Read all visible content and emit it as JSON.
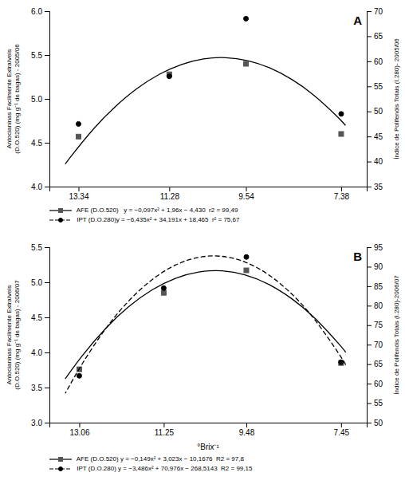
{
  "chart_data": [
    {
      "type": "scatter",
      "annotations": [
        "A"
      ],
      "xlim": [
        14.0,
        6.8
      ],
      "xticks": [
        13.34,
        11.28,
        9.54,
        7.38
      ],
      "ylim": [
        4.0,
        6.0
      ],
      "yticks": [
        {
          "value": 4.0,
          "label": "4.0"
        },
        4.5,
        {
          "value": 5.0,
          "label": "5.0"
        },
        5.5,
        {
          "value": 6.0,
          "label": "6.0"
        }
      ],
      "y_label": "Antocianinas Facilmente Extraíveis\n(D.O.520) (mg g⁻¹ de bagas) - 2005/06",
      "y2lim": [
        35,
        70
      ],
      "y2ticks": [
        35,
        40,
        45,
        50,
        55,
        60,
        65,
        70
      ],
      "y2_label": "Índice de Polifenóis Totais (I.280)- 2005/06",
      "legend": "bottom",
      "series": [
        {
          "name": " AFE (D.O.520)   y = −0,097x² + 1,96x − 4,430  r2 = 99,49",
          "type": "scatter",
          "marker": "square",
          "color": "#555555",
          "line_style": "solid",
          "x": [
            13.34,
            11.28,
            9.54,
            7.38
          ],
          "values": [
            4.57,
            5.28,
            5.4,
            4.6
          ],
          "fit": {
            "color": "#000000",
            "x": [
              7.28,
              7.5,
              8,
              8.5,
              9,
              9.5,
              10,
              10.5,
              11,
              11.5,
              12,
              12.5,
              13,
              13.5,
              13.64
            ],
            "values": [
              4.698,
              4.8138,
              5.042,
              5.2218,
              5.353,
              5.4358,
              5.47,
              5.4558,
              5.393,
              5.2818,
              5.122,
              4.9138,
              4.657,
              4.3518,
              4.2576
            ]
          }
        },
        {
          "name": " IPT (D.O.280)y = −6,435x² + 34,191x + 18,465  r² = 75,67",
          "type": "scatter",
          "marker": "circle",
          "color": "#000000",
          "line_style": "dashed",
          "axis": "y2",
          "x": [
            13.34,
            11.28,
            9.54,
            7.38
          ],
          "values": [
            47.5,
            57.0,
            68.5,
            49.5
          ]
        }
      ]
    },
    {
      "type": "scatter",
      "annotations": [
        "B"
      ],
      "xlim": [
        13.7,
        6.9
      ],
      "xticks": [
        13.06,
        11.25,
        9.48,
        7.45
      ],
      "x_label": "°Brix⁻¹",
      "ylim": [
        3.0,
        5.5
      ],
      "yticks": [
        {
          "value": 3.0,
          "label": "3.0"
        },
        3.5,
        {
          "value": 4.0,
          "label": "4.0"
        },
        4.5,
        {
          "value": 5.0,
          "label": "5.0"
        },
        5.5
      ],
      "y_label": "Antocianinas Facilmente Extraíveis\n(D.O.520) (mg g⁻¹ de bagas) - 2006/07",
      "y2lim": [
        50,
        95
      ],
      "y2ticks": [
        50,
        55,
        60,
        65,
        70,
        75,
        80,
        85,
        90,
        95
      ],
      "y2_label": "Índice de Polifenóis Totais (I.280)-2006/07",
      "legend": "bottom",
      "series": [
        {
          "name": " AFE (D.O.520) y = −0,149x² + 3,023x − 10,1676  R2 = 97,8",
          "type": "scatter",
          "marker": "square",
          "color": "#555555",
          "line_style": "solid",
          "x": [
            13.06,
            11.25,
            9.48,
            7.45
          ],
          "values": [
            3.76,
            4.85,
            5.17,
            3.85
          ],
          "fit": {
            "color": "#000000",
            "x": [
              7.35,
              7.5,
              8,
              8.5,
              9,
              9.5,
              10,
              10.5,
              11,
              11.5,
              12,
              12.5,
              13,
              13.36
            ],
            "values": [
              4.0021,
              4.1237,
              4.4804,
              4.7627,
              4.9704,
              5.1037,
              5.1624,
              5.1467,
              5.0564,
              4.8917,
              4.6524,
              4.3387,
              3.9504,
              3.6247
            ]
          }
        },
        {
          "name": " IPT (D.O.280) y = −3,486x² + 70,976x − 268,5143  R2 = 99,15",
          "type": "scatter",
          "marker": "circle",
          "color": "#000000",
          "line_style": "dashed",
          "axis": "y2",
          "x": [
            13.06,
            11.25,
            9.48,
            7.45
          ],
          "values": [
            62.0,
            84.5,
            92.5,
            65.5
          ],
          "fit": {
            "color": "#000000",
            "x": [
              7.35,
              7.5,
              8,
              8.5,
              9,
              9.5,
              10,
              10.5,
              11,
              11.5,
              12,
              12.5,
              13,
              13.36
            ],
            "values": [
              64.8369,
              67.7182,
              76.1897,
              82.9182,
              87.9037,
              91.1462,
              92.6457,
              92.4022,
              90.4157,
              86.6862,
              81.2137,
              73.9982,
              65.0397,
              57.5103
            ]
          }
        }
      ]
    }
  ]
}
